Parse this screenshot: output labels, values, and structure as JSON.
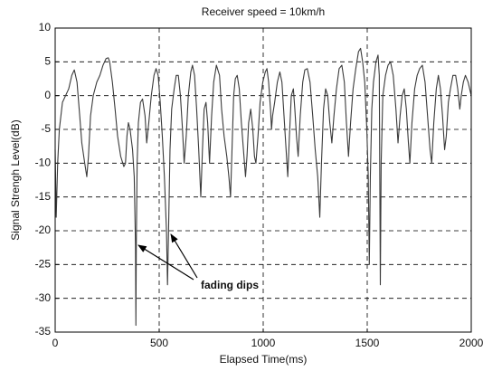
{
  "chart_data": {
    "type": "line",
    "title": "Receiver speed = 10km/h",
    "xlabel": "Elapsed Time(ms)",
    "ylabel": "Signal Strengh Level(dB)",
    "annotation": "fading dips",
    "color": "#3a3a3a",
    "grid": true,
    "xlim": [
      0,
      2000
    ],
    "xticks": [
      0,
      500,
      1000,
      1500,
      2000
    ],
    "ylim": [
      -35,
      10
    ],
    "yticks": [
      -35,
      -30,
      -25,
      -20,
      -15,
      -10,
      -5,
      0,
      5,
      10
    ],
    "x": [
      0,
      5,
      12,
      20,
      35,
      50,
      65,
      80,
      92,
      105,
      118,
      128,
      142,
      152,
      160,
      170,
      183,
      200,
      215,
      230,
      245,
      255,
      262,
      275,
      288,
      300,
      315,
      330,
      338,
      345,
      352,
      360,
      372,
      380,
      386,
      388,
      390,
      394,
      400,
      410,
      420,
      432,
      440,
      450,
      462,
      475,
      485,
      495,
      505,
      515,
      525,
      535,
      540,
      545,
      552,
      560,
      572,
      582,
      592,
      602,
      612,
      620,
      630,
      640,
      652,
      660,
      670,
      680,
      690,
      700,
      708,
      716,
      725,
      733,
      742,
      752,
      762,
      775,
      790,
      800,
      812,
      825,
      835,
      843,
      850,
      858,
      866,
      875,
      885,
      895,
      905,
      915,
      922,
      930,
      940,
      950,
      958,
      965,
      975,
      985,
      998,
      1010,
      1018,
      1026,
      1035,
      1040,
      1045,
      1055,
      1068,
      1080,
      1090,
      1100,
      1110,
      1118,
      1126,
      1135,
      1145,
      1152,
      1160,
      1168,
      1178,
      1190,
      1200,
      1212,
      1225,
      1238,
      1250,
      1262,
      1272,
      1280,
      1290,
      1300,
      1310,
      1320,
      1330,
      1340,
      1352,
      1365,
      1378,
      1390,
      1400,
      1410,
      1420,
      1432,
      1445,
      1458,
      1468,
      1478,
      1488,
      1498,
      1505,
      1510,
      1515,
      1522,
      1530,
      1542,
      1552,
      1558,
      1563,
      1567,
      1575,
      1588,
      1600,
      1612,
      1625,
      1638,
      1648,
      1658,
      1668,
      1678,
      1688,
      1698,
      1705,
      1715,
      1728,
      1740,
      1752,
      1765,
      1778,
      1790,
      1802,
      1810,
      1820,
      1832,
      1842,
      1852,
      1862,
      1872,
      1880,
      1890,
      1900,
      1912,
      1925,
      1935,
      1945,
      1952,
      1962,
      1972,
      1985,
      2000
    ],
    "values": [
      -8,
      -18,
      -10,
      -5,
      -1,
      0,
      1,
      3,
      3.8,
      2,
      -3,
      -7,
      -10,
      -12,
      -9,
      -3,
      0,
      2,
      3,
      4.5,
      5.5,
      5.6,
      5,
      2,
      -2,
      -6,
      -9,
      -10.5,
      -10,
      -6,
      -4,
      -5,
      -8,
      -12,
      -22,
      -34,
      -22,
      -10,
      -4,
      -1,
      -0.5,
      -3,
      -7,
      -4,
      0,
      3,
      4,
      3,
      -1,
      -6,
      -12,
      -20,
      -28,
      -20,
      -8,
      -2,
      1,
      3,
      3,
      0,
      -5,
      -10,
      -6,
      0,
      3.5,
      4.5,
      3,
      -2,
      -8,
      -15,
      -8,
      -2,
      -1,
      -4,
      -10,
      -3,
      2,
      4.5,
      3,
      -2,
      -6,
      -9,
      -12,
      -15,
      -8,
      0,
      2.5,
      3,
      1,
      -4,
      -8,
      -12,
      -9,
      -4,
      -2,
      -5,
      -9,
      -10,
      -6,
      -1,
      2,
      3.5,
      4,
      2,
      -2,
      -5,
      -3,
      -1,
      2,
      3.5,
      2,
      -3,
      -8,
      -12,
      -6,
      0,
      1,
      -2,
      -6,
      -9,
      -3,
      2,
      3.8,
      4,
      2,
      -3,
      -8,
      -12,
      -18,
      -10,
      -2,
      1,
      0,
      -4,
      -7,
      -3,
      1,
      4,
      4.5,
      2,
      -4,
      -9,
      -4,
      1,
      4,
      6.5,
      7,
      5,
      2,
      -5,
      -12,
      -25,
      -12,
      -2,
      2,
      5,
      6,
      3,
      -28,
      -10,
      0,
      3,
      4.5,
      5,
      3,
      -2,
      -7,
      -3,
      0,
      1,
      -2,
      -7,
      -10,
      -4,
      1,
      3,
      4,
      4.5,
      2,
      -3,
      -8,
      -10,
      -4,
      1,
      3,
      1,
      -3,
      -8,
      -6,
      -1,
      1,
      3,
      3,
      1,
      -2,
      0,
      2,
      3,
      2,
      0
    ]
  }
}
